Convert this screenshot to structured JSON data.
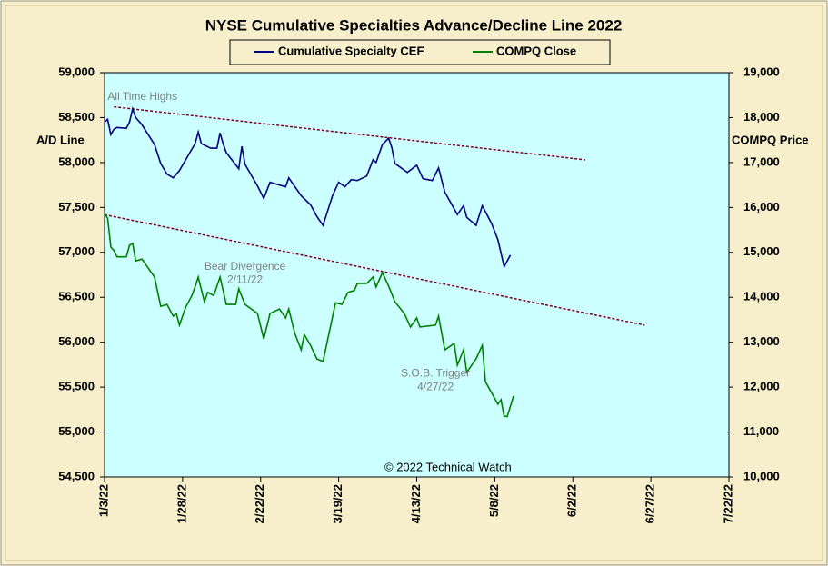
{
  "chart_data": {
    "type": "line",
    "title": "NYSE Cumulative  Specialties  Advance/Decline  Line 2022",
    "ylabel": "A/D Line",
    "y2label": "COMPQ Price",
    "xlim": [
      "1/3/22",
      "7/22/22"
    ],
    "xticks": [
      "1/3/22",
      "1/28/22",
      "2/22/22",
      "3/19/22",
      "4/13/22",
      "5/8/22",
      "6/2/22",
      "6/27/22",
      "7/22/22"
    ],
    "ylim": [
      54500,
      59000
    ],
    "yticks": [
      {
        "value": 54500,
        "label": "54,500"
      },
      {
        "value": 55000,
        "label": "55,000"
      },
      {
        "value": 55500,
        "label": "55,500"
      },
      {
        "value": 56000,
        "label": "56,000"
      },
      {
        "value": 56500,
        "label": "56,500"
      },
      {
        "value": 57000,
        "label": "57,000"
      },
      {
        "value": 57500,
        "label": "57,500"
      },
      {
        "value": 58000,
        "label": "58,000"
      },
      {
        "value": 58500,
        "label": "58,500"
      },
      {
        "value": 59000,
        "label": "59,000"
      }
    ],
    "y2lim": [
      10000,
      19000
    ],
    "y2ticks": [
      {
        "value": 10000,
        "label": "10,000"
      },
      {
        "value": 11000,
        "label": "11,000"
      },
      {
        "value": 12000,
        "label": "12,000"
      },
      {
        "value": 13000,
        "label": "13,000"
      },
      {
        "value": 14000,
        "label": "14,000"
      },
      {
        "value": 15000,
        "label": "15,000"
      },
      {
        "value": 16000,
        "label": "16,000"
      },
      {
        "value": 17000,
        "label": "17,000"
      },
      {
        "value": 18000,
        "label": "18,000"
      },
      {
        "value": 19000,
        "label": "19,000"
      }
    ],
    "series": [
      {
        "name": "Cumulative Specialty CEF",
        "color": "#000080",
        "x": [
          "1/3/22",
          "1/4/22",
          "1/5/22",
          "1/6/22",
          "1/7/22",
          "1/10/22",
          "1/11/22",
          "1/12/22",
          "1/13/22",
          "1/15/22",
          "1/19/22",
          "1/21/22",
          "1/23/22",
          "1/25/22",
          "1/27/22",
          "1/30/22",
          "2/1/22",
          "2/2/22",
          "2/3/22",
          "2/6/22",
          "2/8/22",
          "2/9/22",
          "2/10/22",
          "2/11/22",
          "2/15/22",
          "2/16/22",
          "2/17/22",
          "2/21/22",
          "2/23/22",
          "2/25/22",
          "2/28/22",
          "3/2/22",
          "3/3/22",
          "3/7/22",
          "3/10/22",
          "3/12/22",
          "3/14/22",
          "3/17/22",
          "3/19/22",
          "3/21/22",
          "3/23/22",
          "3/25/22",
          "3/28/22",
          "3/30/22",
          "3/31/22",
          "4/2/22",
          "4/4/22",
          "4/5/22",
          "4/6/22",
          "4/10/22",
          "4/13/22",
          "4/15/22",
          "4/18/22",
          "4/20/22",
          "4/22/22",
          "4/26/22",
          "4/28/22",
          "4/29/22",
          "5/2/22",
          "5/4/22",
          "5/7/22",
          "5/9/22",
          "5/11/22",
          "5/13/22"
        ],
        "values": [
          58450,
          58480,
          58310,
          58370,
          58390,
          58380,
          58450,
          58600,
          58500,
          58420,
          58200,
          57990,
          57870,
          57830,
          57910,
          58090,
          58210,
          58340,
          58210,
          58160,
          58160,
          58330,
          58210,
          58110,
          57930,
          58180,
          57980,
          57740,
          57600,
          57780,
          57750,
          57730,
          57830,
          57630,
          57530,
          57400,
          57300,
          57630,
          57780,
          57730,
          57810,
          57800,
          57850,
          58030,
          58000,
          58200,
          58270,
          58170,
          57990,
          57890,
          57970,
          57820,
          57800,
          57940,
          57670,
          57420,
          57520,
          57390,
          57300,
          57520,
          57320,
          57140,
          56840,
          56970
        ]
      },
      {
        "name": "COMPQ Close",
        "color": "#008000",
        "axis": "y2",
        "x": [
          "1/3/22",
          "1/4/22",
          "1/5/22",
          "1/6/22",
          "1/7/22",
          "1/10/22",
          "1/11/22",
          "1/12/22",
          "1/13/22",
          "1/15/22",
          "1/19/22",
          "1/21/22",
          "1/23/22",
          "1/25/22",
          "1/26/22",
          "1/27/22",
          "1/29/22",
          "1/31/22",
          "2/1/22",
          "2/2/22",
          "2/4/22",
          "2/5/22",
          "2/7/22",
          "2/9/22",
          "2/11/22",
          "2/14/22",
          "2/15/22",
          "2/17/22",
          "2/21/22",
          "2/23/22",
          "2/25/22",
          "2/28/22",
          "3/2/22",
          "3/3/22",
          "3/5/22",
          "3/7/22",
          "3/8/22",
          "3/10/22",
          "3/12/22",
          "3/14/22",
          "3/18/22",
          "3/20/22",
          "3/22/22",
          "3/24/22",
          "3/25/22",
          "3/28/22",
          "3/30/22",
          "3/31/22",
          "4/2/22",
          "4/4/22",
          "4/6/22",
          "4/9/22",
          "4/11/22",
          "4/13/22",
          "4/14/22",
          "4/19/22",
          "4/20/22",
          "4/22/22",
          "4/25/22",
          "4/26/22",
          "4/28/22",
          "4/29/22",
          "5/2/22",
          "5/4/22",
          "5/5/22",
          "5/9/22",
          "5/10/22",
          "5/11/22",
          "5/12/22",
          "5/14/22"
        ],
        "values": [
          15865,
          15760,
          15120,
          15040,
          14900,
          14900,
          15160,
          15200,
          14810,
          14850,
          14450,
          13800,
          13840,
          13580,
          13640,
          13380,
          13780,
          14040,
          14230,
          14450,
          13900,
          14110,
          14040,
          14450,
          13840,
          13840,
          14190,
          13840,
          13640,
          13070,
          13640,
          13740,
          13540,
          13740,
          13190,
          12830,
          13170,
          12930,
          12630,
          12570,
          13880,
          13840,
          14110,
          14150,
          14310,
          14310,
          14450,
          14230,
          14550,
          14250,
          13900,
          13640,
          13340,
          13540,
          13340,
          13380,
          13580,
          12830,
          12970,
          12490,
          12830,
          12330,
          12630,
          12930,
          12120,
          11620,
          11720,
          11350,
          11350,
          11800
        ]
      }
    ],
    "trendlines": [
      {
        "color": "#800020",
        "x": [
          "1/6/22",
          "6/6/22"
        ],
        "values": [
          58620,
          58030
        ]
      },
      {
        "color": "#800020",
        "x": [
          "1/3/22",
          "6/25/22"
        ],
        "values": [
          57420,
          56190
        ]
      }
    ],
    "annotations": [
      {
        "text": "All Time Highs",
        "x": "1/4/22",
        "y": 58730
      },
      {
        "text": "Bear Divergence",
        "x": "2/17/22",
        "y": 56840
      },
      {
        "text": "2/11/22",
        "x": "2/17/22",
        "y": 56690
      },
      {
        "text": "S.O.B. Trigger",
        "x": "4/19/22",
        "y": 55650
      },
      {
        "text": "4/27/22",
        "x": "4/19/22",
        "y": 55500
      },
      {
        "text": "© 2022 Technical Watch",
        "x": "4/23/22",
        "y": 54600
      }
    ]
  }
}
